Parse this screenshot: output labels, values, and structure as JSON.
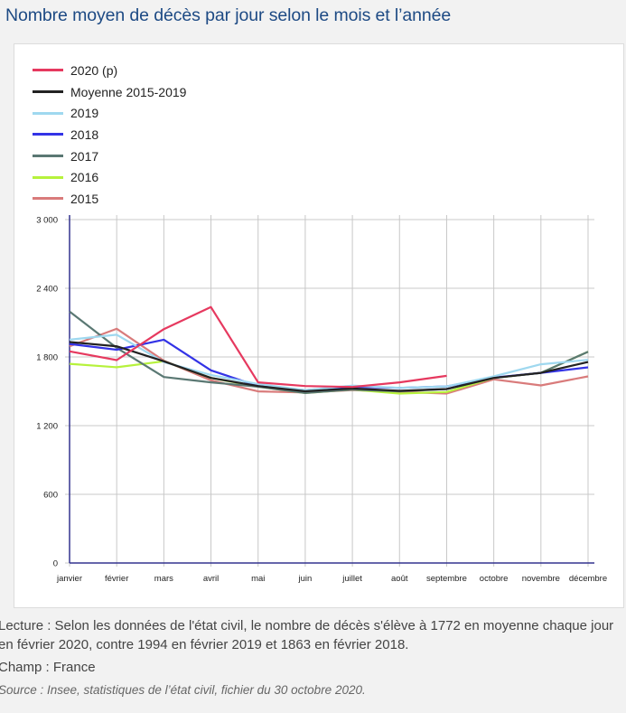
{
  "title": "Nombre moyen de décès par jour selon le mois et l’année",
  "chart_data": {
    "type": "line",
    "title": "Nombre moyen de décès par jour selon le mois et l’année",
    "xlabel": "",
    "ylabel": "",
    "categories": [
      "janvier",
      "février",
      "mars",
      "avril",
      "mai",
      "juin",
      "juillet",
      "août",
      "septembre",
      "octobre",
      "novembre",
      "décembre"
    ],
    "yticks": [
      0,
      600,
      1200,
      1800,
      2400,
      3000
    ],
    "ytick_labels": [
      "0",
      "600",
      "1 200",
      "1 800",
      "2 400",
      "3 000"
    ],
    "ylim": [
      0,
      3000
    ],
    "grid": true,
    "legend_position": "top-left",
    "series": [
      {
        "name": "2015",
        "color": "#d97b7b",
        "values": [
          1893,
          2046,
          1767,
          1596,
          1499,
          1490,
          1510,
          1495,
          1480,
          1604,
          1551,
          1630
        ]
      },
      {
        "name": "2016",
        "color": "#b6f23c",
        "values": [
          1740,
          1710,
          1762,
          1617,
          1540,
          1485,
          1515,
          1480,
          1494,
          1617,
          1661,
          1846
        ]
      },
      {
        "name": "2017",
        "color": "#5a7873",
        "values": [
          2196,
          1880,
          1625,
          1578,
          1540,
          1485,
          1515,
          1500,
          1520,
          1617,
          1661,
          1846
        ]
      },
      {
        "name": "2018",
        "color": "#3333e6",
        "values": [
          1914,
          1863,
          1951,
          1683,
          1546,
          1510,
          1540,
          1530,
          1543,
          1620,
          1661,
          1709
        ]
      },
      {
        "name": "2019",
        "color": "#9fd8ef",
        "values": [
          1951,
          1994,
          1755,
          1643,
          1564,
          1510,
          1550,
          1530,
          1543,
          1630,
          1736,
          1775
        ]
      },
      {
        "name": "Moyenne 2015-2019",
        "color": "#222222",
        "values": [
          1930,
          1893,
          1762,
          1617,
          1546,
          1500,
          1525,
          1504,
          1520,
          1617,
          1661,
          1756
        ]
      },
      {
        "name": "2020 (p)",
        "color": "#e6395f",
        "values": [
          1849,
          1772,
          2043,
          2236,
          1578,
          1546,
          1538,
          1578,
          1635,
          null,
          null,
          null
        ]
      }
    ],
    "legend_order": [
      "2020 (p)",
      "Moyenne 2015-2019",
      "2019",
      "2018",
      "2017",
      "2016",
      "2015"
    ],
    "axis_color": "#33338f",
    "grid_color": "#c8c8c8"
  },
  "notes": {
    "lecture": "Lecture : Selon les données de l'état civil, le nombre de décès s'élève à 1772 en moyenne chaque jour en février 2020, contre 1994 en février 2019 et 1863 en février 2018.",
    "champ": "Champ : France",
    "source": "Source : Insee, statistiques de l’état civil, fichier du 30 octobre 2020."
  }
}
